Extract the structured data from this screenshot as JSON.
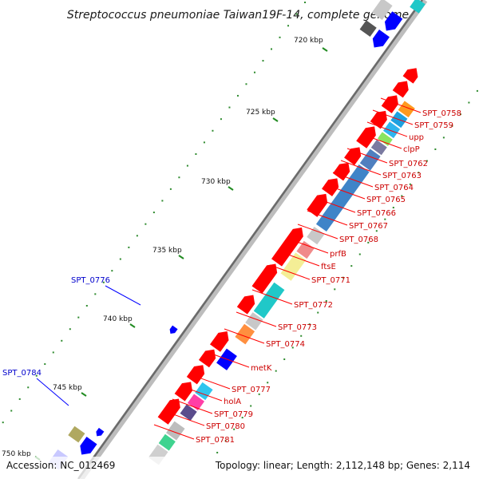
{
  "title": "Streptococcus pneumoniae Taiwan19F-14, complete genome",
  "footer": {
    "accession": "Accession: NC_012469",
    "summary": "Topology: linear; Length: 2,112,148 bp; Genes: 2,114"
  },
  "colors": {
    "forward_gene": "#ff0000",
    "reverse_gene": "#0000ff",
    "label_red": "#cc0000",
    "label_blue": "#0000cc",
    "backbone": "#808080",
    "tick": "#228b22"
  },
  "chart_data": {
    "type": "genome-map",
    "axis_unit": "kbp",
    "axis_ticks": [
      {
        "label": "720 kbp",
        "kbp": 720
      },
      {
        "label": "725 kbp",
        "kbp": 725
      },
      {
        "label": "730 kbp",
        "kbp": 730
      },
      {
        "label": "735 kbp",
        "kbp": 735
      },
      {
        "label": "740 kbp",
        "kbp": 740
      },
      {
        "label": "745 kbp",
        "kbp": 745
      },
      {
        "label": "750 kbp",
        "kbp": 750
      }
    ],
    "forward_labels": [
      "SPT_0758",
      "SPT_0759",
      "upp",
      "clpP",
      "SPT_0762",
      "SPT_0763",
      "SPT_0764",
      "SPT_0765",
      "SPT_0766",
      "SPT_0767",
      "SPT_0768",
      "prfB",
      "ftsE",
      "SPT_0771",
      "SPT_0772",
      "SPT_0773",
      "SPT_0774",
      "metK",
      "SPT_0777",
      "holA",
      "SPT_0779",
      "SPT_0780",
      "SPT_0781"
    ],
    "reverse_labels": [
      "SPT_0776",
      "SPT_0784"
    ]
  }
}
